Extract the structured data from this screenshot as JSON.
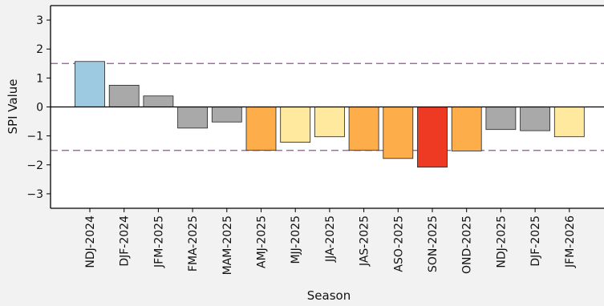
{
  "chart_data": {
    "type": "bar",
    "title": "",
    "xlabel": "Season",
    "ylabel": "SPI Value",
    "ylim": [
      -3.5,
      3.5
    ],
    "yticks": [
      3,
      2,
      1,
      0,
      -1,
      -2,
      -3
    ],
    "ytick_labels": [
      "3",
      "2",
      "1",
      "0",
      "−1",
      "−2",
      "−3"
    ],
    "categories": [
      "NDJ-2024",
      "DJF-2024",
      "JFM-2025",
      "FMA-2025",
      "MAM-2025",
      "AMJ-2025",
      "MJJ-2025",
      "JJA-2025",
      "JAS-2025",
      "ASO-2025",
      "SON-2025",
      "OND-2025",
      "NDJ-2025",
      "DJF-2025",
      "JFM-2026"
    ],
    "values": [
      1.57,
      0.75,
      0.38,
      -0.73,
      -0.52,
      -1.5,
      -1.22,
      -1.03,
      -1.5,
      -1.78,
      -2.08,
      -1.52,
      -0.78,
      -0.82,
      -1.03
    ],
    "bar_colors": [
      "#9ecae1",
      "#a9a9a9",
      "#a9a9a9",
      "#a9a9a9",
      "#a9a9a9",
      "#fdae4b",
      "#fee99f",
      "#fee99f",
      "#fdae4b",
      "#fdae4b",
      "#ee3a22",
      "#fdae4b",
      "#a9a9a9",
      "#a9a9a9",
      "#fee99f"
    ],
    "reference_lines": [
      1.5,
      -1.5
    ],
    "reference_line_color": "#9b4f9b",
    "grid": false,
    "legend": "none"
  }
}
